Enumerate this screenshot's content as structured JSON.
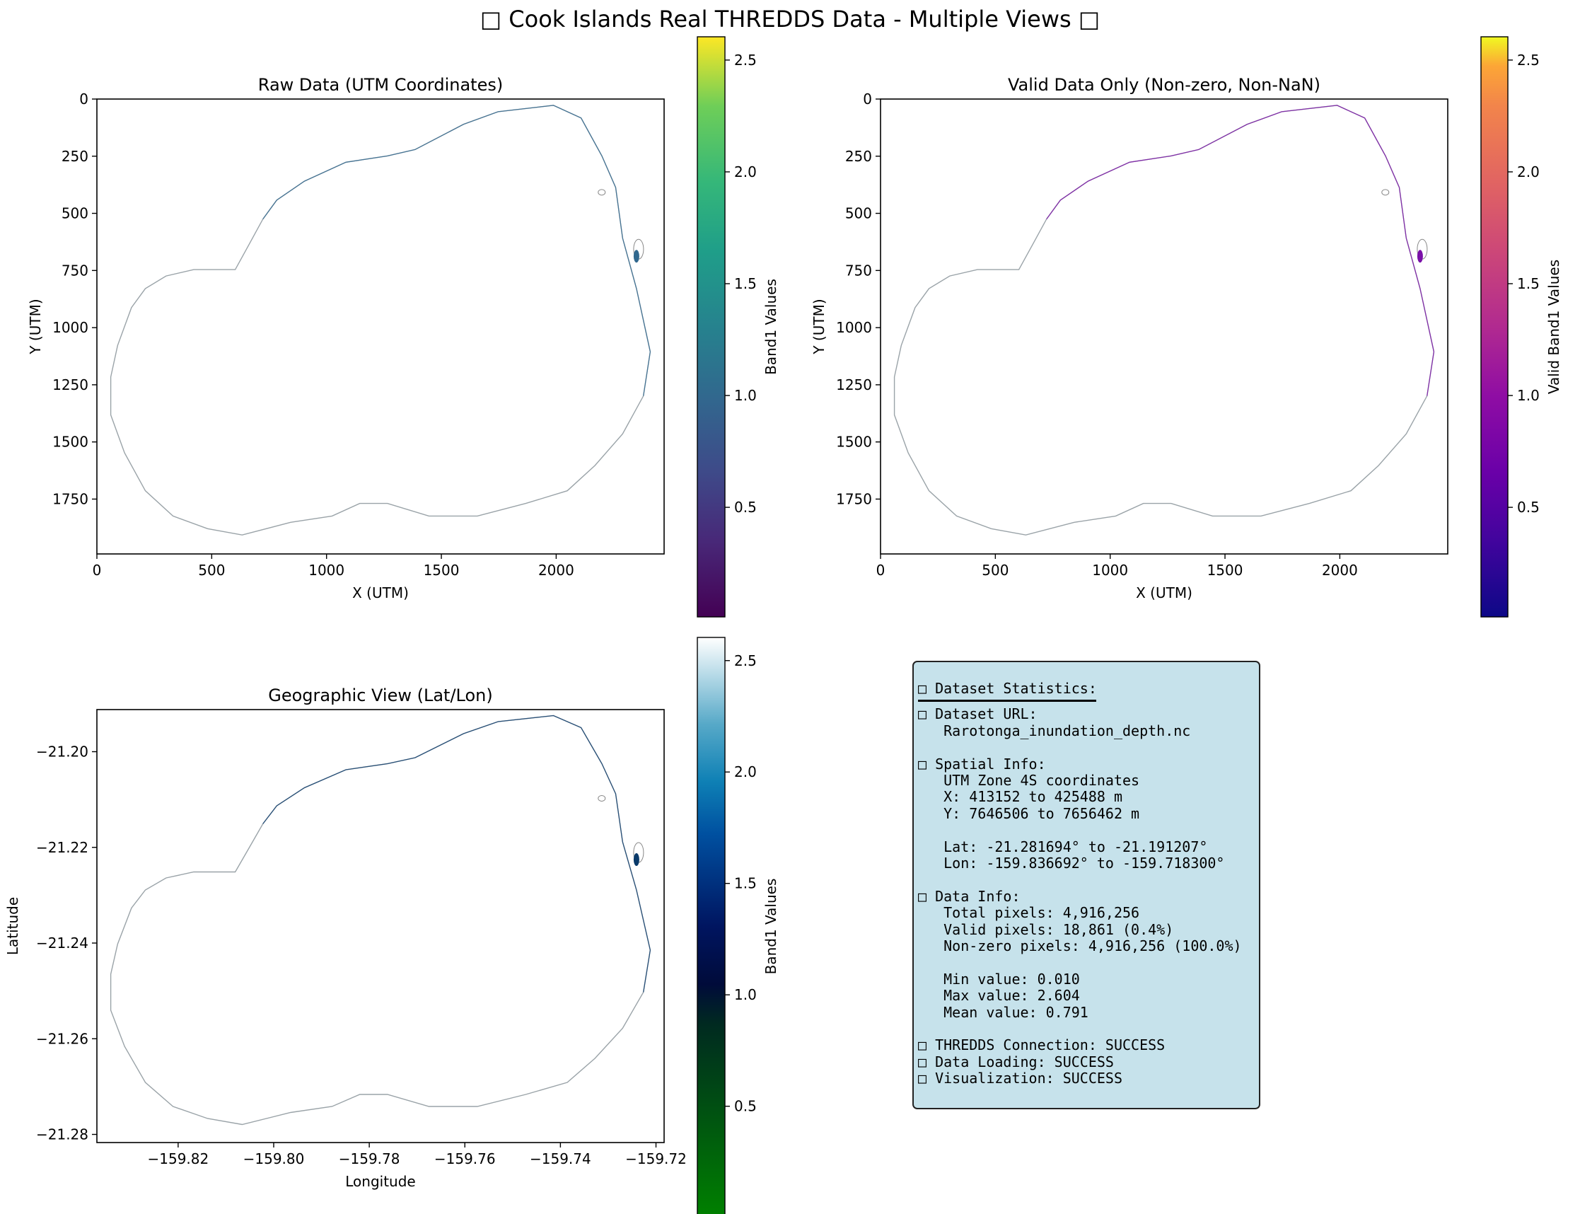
{
  "figure": {
    "suptitle": "□ Cook Islands Real THREDDS Data - Multiple Views □"
  },
  "chart_data": [
    {
      "type": "heatmap",
      "title": "Raw Data (UTM Coordinates)",
      "xlabel": "X (UTM)",
      "ylabel": "Y (UTM)",
      "xlim": [
        0,
        2470
      ],
      "ylim": [
        1990,
        0
      ],
      "x_ticks": [
        0,
        500,
        1000,
        1500,
        2000
      ],
      "y_ticks": [
        0,
        250,
        500,
        750,
        1000,
        1250,
        1500,
        1750
      ],
      "x_tick_labels": [
        "0",
        "500",
        "1000",
        "1500",
        "2000"
      ],
      "y_tick_labels": [
        "0",
        "250",
        "500",
        "750",
        "1000",
        "1250",
        "1500",
        "1750"
      ],
      "colorbar": {
        "label": "Band1 Values",
        "colormap": "viridis",
        "range": [
          0.01,
          2.604
        ],
        "ticks": [
          0.5,
          1.0,
          1.5,
          2.0,
          2.5
        ],
        "tick_labels": [
          "0.5",
          "1.0",
          "1.5",
          "2.0",
          "2.5"
        ]
      },
      "grid": false
    },
    {
      "type": "heatmap",
      "title": "Valid Data Only (Non-zero, Non-NaN)",
      "xlabel": "X (UTM)",
      "ylabel": "Y (UTM)",
      "xlim": [
        0,
        2470
      ],
      "ylim": [
        1990,
        0
      ],
      "x_ticks": [
        0,
        500,
        1000,
        1500,
        2000
      ],
      "y_ticks": [
        0,
        250,
        500,
        750,
        1000,
        1250,
        1500,
        1750
      ],
      "x_tick_labels": [
        "0",
        "500",
        "1000",
        "1500",
        "2000"
      ],
      "y_tick_labels": [
        "0",
        "250",
        "500",
        "750",
        "1000",
        "1250",
        "1500",
        "1750"
      ],
      "colorbar": {
        "label": "Valid Band1 Values",
        "colormap": "plasma",
        "range": [
          0.01,
          2.604
        ],
        "ticks": [
          0.5,
          1.0,
          1.5,
          2.0,
          2.5
        ],
        "tick_labels": [
          "0.5",
          "1.0",
          "1.5",
          "2.0",
          "2.5"
        ]
      },
      "grid": false
    },
    {
      "type": "heatmap",
      "title": "Geographic View (Lat/Lon)",
      "xlabel": "Longitude",
      "ylabel": "Latitude",
      "xlim": [
        -159.837,
        -159.7183
      ],
      "ylim": [
        -21.2817,
        -21.1912
      ],
      "x_ticks": [
        -159.82,
        -159.8,
        -159.78,
        -159.76,
        -159.74,
        -159.72
      ],
      "y_ticks": [
        -21.2,
        -21.22,
        -21.24,
        -21.26,
        -21.28
      ],
      "x_tick_labels": [
        "−159.82",
        "−159.80",
        "−159.78",
        "−159.76",
        "−159.74",
        "−159.72"
      ],
      "y_tick_labels": [
        "−21.20",
        "−21.22",
        "−21.24",
        "−21.26",
        "−21.28"
      ],
      "colorbar": {
        "label": "Band1 Values",
        "colormap": "ocean",
        "range": [
          0.01,
          2.604
        ],
        "ticks": [
          0.5,
          1.0,
          1.5,
          2.0,
          2.5
        ],
        "tick_labels": [
          "0.5",
          "1.0",
          "1.5",
          "2.0",
          "2.5"
        ]
      },
      "grid": false
    }
  ],
  "stats_box": {
    "heading": "□ Dataset Statistics:",
    "url_label": "□ Dataset URL:",
    "url_value": "   Rarotonga_inundation_depth.nc",
    "spatial_label": "□ Spatial Info:",
    "spatial_zone": "   UTM Zone 4S coordinates",
    "spatial_x": "   X: 413152 to 425488 m",
    "spatial_y": "   Y: 7646506 to 7656462 m",
    "spatial_lat": "   Lat: -21.281694° to -21.191207°",
    "spatial_lon": "   Lon: -159.836692° to -159.718300°",
    "data_label": "□ Data Info:",
    "total_pixels": "   Total pixels: 4,916,256",
    "valid_pixels": "   Valid pixels: 18,861 (0.4%)",
    "nonzero_pixels": "   Non-zero pixels: 4,916,256 (100.0%)",
    "min_value": "   Min value: 0.010",
    "max_value": "   Max value: 2.604",
    "mean_value": "   Mean value: 0.791",
    "thredds_status": "□ THREDDS Connection: SUCCESS",
    "loading_status": "□ Data Loading: SUCCESS",
    "viz_status": "□ Visualization: SUCCESS"
  }
}
